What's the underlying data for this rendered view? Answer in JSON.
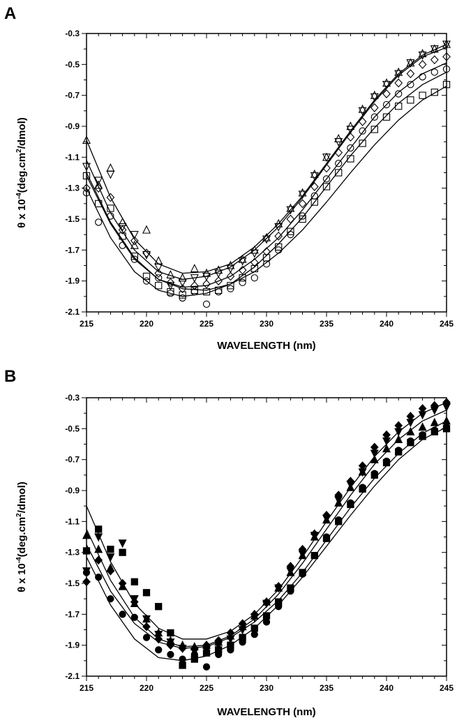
{
  "chart_data": [
    {
      "panel": "A",
      "type": "scatter",
      "xlabel": "WAVELENGTH (nm)",
      "ylabel_parts": [
        "θ x 10",
        "-4",
        "(deg.cm",
        "2",
        "/dmol)"
      ],
      "xlim": [
        215,
        245
      ],
      "ylim": [
        -2.1,
        -0.3
      ],
      "xticks": [
        "215",
        "220",
        "225",
        "230",
        "235",
        "240",
        "245"
      ],
      "yticks": [
        "-0.3",
        "-0.5",
        "-0.7",
        "-0.9",
        "-1.1",
        "-1.3",
        "-1.5",
        "-1.7",
        "-1.9",
        "-2.1"
      ],
      "grid": false,
      "series": [
        {
          "marker": "triangle-up",
          "filled": false,
          "x": [
            215,
            216,
            217,
            218,
            219,
            220,
            221,
            222,
            223,
            224,
            225,
            226,
            227,
            228,
            229,
            230,
            231,
            232,
            233,
            234,
            235,
            236,
            237,
            238,
            239,
            240,
            241,
            242,
            243,
            244,
            245
          ],
          "y": [
            -0.99,
            -1.28,
            -1.17,
            -1.52,
            -1.67,
            -1.57,
            -1.77,
            -1.86,
            -1.88,
            -1.82,
            -1.85,
            -1.83,
            -1.8,
            -1.76,
            -1.7,
            -1.62,
            -1.53,
            -1.43,
            -1.33,
            -1.21,
            -1.1,
            -0.98,
            -0.9,
            -0.79,
            -0.7,
            -0.62,
            -0.55,
            -0.49,
            -0.43,
            -0.4,
            -0.37
          ]
        },
        {
          "marker": "triangle-down",
          "filled": false,
          "x": [
            215,
            216,
            217,
            218,
            219,
            220,
            221,
            222,
            223,
            224,
            225,
            226,
            227,
            228,
            229,
            230,
            231,
            232,
            233,
            234,
            235,
            236,
            237,
            238,
            239,
            240,
            241,
            242,
            243,
            244,
            245
          ],
          "y": [
            -1.16,
            -1.25,
            -1.21,
            -1.55,
            -1.6,
            -1.73,
            -1.81,
            -1.93,
            -1.91,
            -1.88,
            -1.87,
            -1.85,
            -1.82,
            -1.77,
            -1.72,
            -1.63,
            -1.55,
            -1.44,
            -1.34,
            -1.22,
            -1.1,
            -1.0,
            -0.92,
            -0.8,
            -0.71,
            -0.63,
            -0.56,
            -0.49,
            -0.44,
            -0.4,
            -0.37
          ]
        },
        {
          "marker": "diamond",
          "filled": false,
          "x": [
            215,
            216,
            217,
            218,
            219,
            220,
            221,
            222,
            223,
            224,
            225,
            226,
            227,
            228,
            229,
            230,
            231,
            232,
            233,
            234,
            235,
            236,
            237,
            238,
            239,
            240,
            241,
            242,
            243,
            244,
            245
          ],
          "y": [
            -1.3,
            -1.3,
            -1.36,
            -1.57,
            -1.64,
            -1.72,
            -1.85,
            -1.91,
            -1.95,
            -1.93,
            -1.92,
            -1.9,
            -1.87,
            -1.83,
            -1.78,
            -1.71,
            -1.61,
            -1.5,
            -1.4,
            -1.29,
            -1.17,
            -1.07,
            -0.97,
            -0.87,
            -0.78,
            -0.69,
            -0.62,
            -0.56,
            -0.5,
            -0.47,
            -0.45
          ]
        },
        {
          "marker": "circle",
          "filled": false,
          "x": [
            215,
            216,
            217,
            218,
            219,
            220,
            221,
            222,
            223,
            224,
            225,
            226,
            227,
            228,
            229,
            230,
            231,
            232,
            233,
            234,
            235,
            236,
            237,
            238,
            239,
            240,
            241,
            242,
            243,
            244,
            245
          ],
          "y": [
            -1.33,
            -1.52,
            -1.48,
            -1.67,
            -1.76,
            -1.9,
            -1.88,
            -1.98,
            -2.01,
            -1.97,
            -2.05,
            -1.97,
            -1.95,
            -1.91,
            -1.88,
            -1.79,
            -1.7,
            -1.6,
            -1.48,
            -1.35,
            -1.24,
            -1.14,
            -1.04,
            -0.93,
            -0.84,
            -0.76,
            -0.69,
            -0.63,
            -0.58,
            -0.55,
            -0.53
          ]
        },
        {
          "marker": "square",
          "filled": false,
          "x": [
            215,
            216,
            217,
            218,
            219,
            220,
            221,
            222,
            223,
            224,
            225,
            226,
            227,
            228,
            229,
            230,
            231,
            232,
            233,
            234,
            235,
            236,
            237,
            238,
            239,
            240,
            241,
            242,
            243,
            244,
            245
          ],
          "y": [
            -1.22,
            -1.4,
            -1.43,
            -1.61,
            -1.74,
            -1.87,
            -1.93,
            -1.97,
            -1.99,
            -1.96,
            -1.97,
            -1.96,
            -1.93,
            -1.88,
            -1.82,
            -1.75,
            -1.68,
            -1.58,
            -1.5,
            -1.39,
            -1.29,
            -1.2,
            -1.11,
            -1.01,
            -0.92,
            -0.84,
            -0.77,
            -0.73,
            -0.7,
            -0.68,
            -0.63
          ]
        }
      ],
      "fit_lines": [
        {
          "x": [
            215,
            217,
            219,
            221,
            223,
            225,
            227,
            229,
            231,
            233,
            235,
            237,
            239,
            241,
            243,
            245
          ],
          "y": [
            -0.99,
            -1.36,
            -1.63,
            -1.79,
            -1.85,
            -1.84,
            -1.79,
            -1.68,
            -1.53,
            -1.35,
            -1.14,
            -0.93,
            -0.73,
            -0.56,
            -0.44,
            -0.37
          ]
        },
        {
          "x": [
            215,
            217,
            219,
            221,
            223,
            225,
            227,
            229,
            231,
            233,
            235,
            237,
            239,
            241,
            243,
            245
          ],
          "y": [
            -1.12,
            -1.46,
            -1.7,
            -1.84,
            -1.89,
            -1.87,
            -1.81,
            -1.7,
            -1.55,
            -1.36,
            -1.15,
            -0.94,
            -0.74,
            -0.57,
            -0.45,
            -0.39
          ]
        },
        {
          "x": [
            215,
            217,
            219,
            221,
            223,
            225,
            227,
            229,
            231,
            233,
            235,
            237,
            239,
            241,
            243,
            245
          ],
          "y": [
            -1.22,
            -1.53,
            -1.76,
            -1.89,
            -1.94,
            -1.93,
            -1.87,
            -1.76,
            -1.62,
            -1.44,
            -1.24,
            -1.04,
            -0.84,
            -0.68,
            -0.56,
            -0.49
          ]
        },
        {
          "x": [
            215,
            217,
            219,
            221,
            223,
            225,
            227,
            229,
            231,
            233,
            235,
            237,
            239,
            241,
            243,
            245
          ],
          "y": [
            -1.3,
            -1.62,
            -1.84,
            -1.96,
            -2.0,
            -1.98,
            -1.92,
            -1.81,
            -1.66,
            -1.49,
            -1.29,
            -1.09,
            -0.91,
            -0.75,
            -0.63,
            -0.55
          ]
        },
        {
          "x": [
            215,
            217,
            219,
            221,
            223,
            225,
            227,
            229,
            231,
            233,
            235,
            237,
            239,
            241,
            243,
            245
          ],
          "y": [
            -1.2,
            -1.52,
            -1.75,
            -1.89,
            -1.95,
            -1.96,
            -1.92,
            -1.84,
            -1.72,
            -1.57,
            -1.39,
            -1.2,
            -1.02,
            -0.86,
            -0.73,
            -0.64
          ]
        }
      ]
    },
    {
      "panel": "B",
      "type": "scatter",
      "xlabel": "WAVELENGTH (nm)",
      "ylabel_parts": [
        "θ x 10",
        "-4",
        "(deg.cm",
        "2",
        "/dmol)"
      ],
      "xlim": [
        215,
        245
      ],
      "ylim": [
        -2.1,
        -0.3
      ],
      "xticks": [
        "215",
        "220",
        "225",
        "230",
        "235",
        "240",
        "245"
      ],
      "yticks": [
        "-0.3",
        "-0.5",
        "-0.7",
        "-0.9",
        "-1.1",
        "-1.3",
        "-1.5",
        "-1.7",
        "-1.9",
        "-2.1"
      ],
      "grid": false,
      "series": [
        {
          "marker": "triangle-up",
          "filled": true,
          "x": [
            215,
            216,
            217,
            218,
            219,
            220,
            221,
            222,
            223,
            224,
            225,
            226,
            227,
            228,
            229,
            230,
            231,
            232,
            233,
            234,
            235,
            236,
            237,
            238,
            239,
            240,
            241,
            242,
            243,
            244,
            245
          ],
          "y": [
            -1.19,
            -1.28,
            -1.4,
            -1.52,
            -1.63,
            -1.73,
            -1.82,
            -1.87,
            -1.9,
            -1.91,
            -1.9,
            -1.88,
            -1.84,
            -1.78,
            -1.71,
            -1.62,
            -1.53,
            -1.43,
            -1.32,
            -1.2,
            -1.09,
            -0.98,
            -0.88,
            -0.78,
            -0.7,
            -0.63,
            -0.57,
            -0.52,
            -0.49,
            -0.46,
            -0.45
          ]
        },
        {
          "marker": "triangle-down",
          "filled": true,
          "x": [
            215,
            216,
            217,
            218,
            219,
            220,
            221,
            222,
            223,
            224,
            225,
            226,
            227,
            228,
            229,
            230,
            231,
            232,
            233,
            234,
            235,
            236,
            237,
            238,
            239,
            240,
            241,
            242,
            243,
            244,
            245
          ],
          "y": [
            -1.42,
            -1.2,
            -1.33,
            -1.24,
            -1.6,
            -1.73,
            -1.83,
            -1.88,
            -1.92,
            -1.94,
            -1.93,
            -1.9,
            -1.86,
            -1.8,
            -1.72,
            -1.63,
            -1.53,
            -1.42,
            -1.31,
            -1.19,
            -1.08,
            -0.96,
            -0.86,
            -0.78,
            -0.66,
            -0.58,
            -0.52,
            -0.46,
            -0.41,
            -0.38,
            -0.36
          ]
        },
        {
          "marker": "diamond",
          "filled": true,
          "x": [
            215,
            216,
            217,
            218,
            219,
            220,
            221,
            222,
            223,
            224,
            225,
            226,
            227,
            228,
            229,
            230,
            231,
            232,
            233,
            234,
            235,
            236,
            237,
            238,
            239,
            240,
            241,
            242,
            243,
            244,
            245
          ],
          "y": [
            -1.49,
            -1.35,
            -1.42,
            -1.5,
            -1.62,
            -1.78,
            -1.86,
            -1.9,
            -1.92,
            -1.92,
            -1.9,
            -1.87,
            -1.82,
            -1.76,
            -1.7,
            -1.62,
            -1.52,
            -1.39,
            -1.28,
            -1.18,
            -1.06,
            -0.93,
            -0.84,
            -0.74,
            -0.62,
            -0.54,
            -0.48,
            -0.42,
            -0.37,
            -0.35,
            -0.33
          ]
        },
        {
          "marker": "circle",
          "filled": true,
          "x": [
            215,
            216,
            217,
            218,
            219,
            220,
            221,
            222,
            223,
            224,
            225,
            226,
            227,
            228,
            229,
            230,
            231,
            232,
            233,
            234,
            235,
            236,
            237,
            238,
            239,
            240,
            241,
            242,
            243,
            244,
            245
          ],
          "y": [
            -1.43,
            -1.46,
            -1.6,
            -1.7,
            -1.72,
            -1.85,
            -1.93,
            -1.96,
            -1.99,
            -1.96,
            -2.04,
            -1.96,
            -1.93,
            -1.88,
            -1.83,
            -1.75,
            -1.65,
            -1.55,
            -1.44,
            -1.32,
            -1.2,
            -1.09,
            -0.98,
            -0.88,
            -0.79,
            -0.71,
            -0.64,
            -0.58,
            -0.54,
            -0.51,
            -0.49
          ]
        },
        {
          "marker": "square",
          "filled": true,
          "x": [
            215,
            216,
            217,
            218,
            219,
            220,
            221,
            222,
            223,
            224,
            225,
            226,
            227,
            228,
            229,
            230,
            231,
            232,
            233,
            234,
            235,
            236,
            237,
            238,
            239,
            240,
            241,
            242,
            243,
            244,
            245
          ],
          "y": [
            -1.29,
            -1.15,
            -1.28,
            -1.3,
            -1.49,
            -1.56,
            -1.65,
            -1.82,
            -2.03,
            -1.99,
            -1.95,
            -1.93,
            -1.9,
            -1.85,
            -1.79,
            -1.71,
            -1.62,
            -1.53,
            -1.43,
            -1.32,
            -1.21,
            -1.1,
            -0.99,
            -0.89,
            -0.8,
            -0.72,
            -0.65,
            -0.59,
            -0.55,
            -0.52,
            -0.5
          ]
        }
      ],
      "fit_lines": [
        {
          "x": [
            215,
            217,
            219,
            221,
            223,
            225,
            227,
            229,
            231,
            233,
            235,
            237,
            239,
            241,
            243,
            245
          ],
          "y": [
            -1.0,
            -1.36,
            -1.63,
            -1.79,
            -1.86,
            -1.86,
            -1.81,
            -1.7,
            -1.54,
            -1.33,
            -1.1,
            -0.88,
            -0.68,
            -0.52,
            -0.4,
            -0.33
          ]
        },
        {
          "x": [
            215,
            217,
            219,
            221,
            223,
            225,
            227,
            229,
            231,
            233,
            235,
            237,
            239,
            241,
            243,
            245
          ],
          "y": [
            -1.15,
            -1.48,
            -1.72,
            -1.86,
            -1.91,
            -1.9,
            -1.84,
            -1.73,
            -1.57,
            -1.37,
            -1.15,
            -0.93,
            -0.73,
            -0.57,
            -0.45,
            -0.38
          ]
        },
        {
          "x": [
            215,
            217,
            219,
            221,
            223,
            225,
            227,
            229,
            231,
            233,
            235,
            237,
            239,
            241,
            243,
            245
          ],
          "y": [
            -1.25,
            -1.55,
            -1.76,
            -1.88,
            -1.92,
            -1.91,
            -1.85,
            -1.75,
            -1.61,
            -1.43,
            -1.22,
            -1.01,
            -0.82,
            -0.66,
            -0.53,
            -0.45
          ]
        },
        {
          "x": [
            215,
            217,
            219,
            221,
            223,
            225,
            227,
            229,
            231,
            233,
            235,
            237,
            239,
            241,
            243,
            245
          ],
          "y": [
            -1.33,
            -1.64,
            -1.86,
            -1.98,
            -2.0,
            -1.97,
            -1.9,
            -1.79,
            -1.64,
            -1.46,
            -1.26,
            -1.06,
            -0.87,
            -0.7,
            -0.57,
            -0.49
          ]
        }
      ]
    }
  ],
  "panels": {
    "a": {
      "letter": "A"
    },
    "b": {
      "letter": "B"
    }
  }
}
